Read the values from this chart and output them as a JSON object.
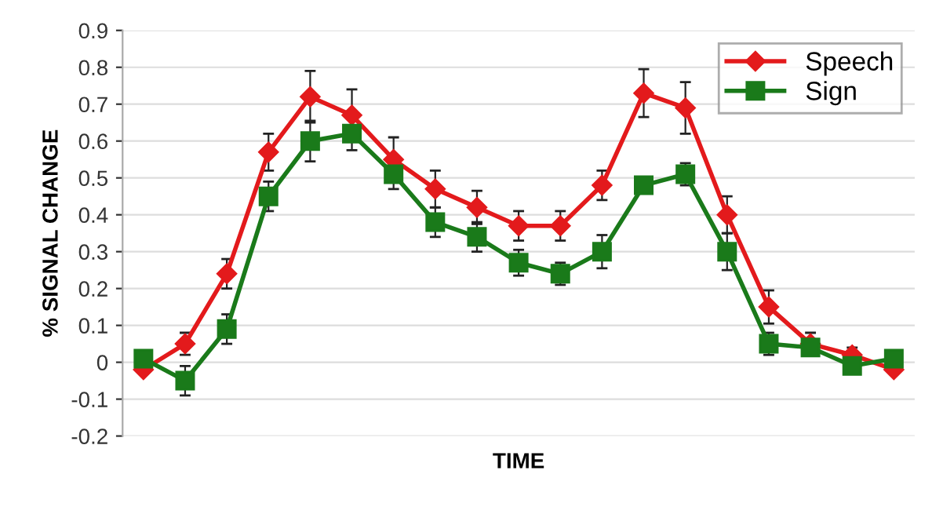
{
  "chart_data": {
    "type": "line",
    "xlabel": "TIME",
    "ylabel": "% SIGNAL CHANGE",
    "categories": [
      null,
      null,
      null,
      null,
      null,
      null,
      null,
      null,
      null,
      null,
      null,
      null,
      null,
      null,
      null,
      null,
      null,
      null,
      null
    ],
    "series": [
      {
        "name": "Speech",
        "color": "#e31a1c",
        "marker": "diamond",
        "values": [
          -0.02,
          0.05,
          0.24,
          0.57,
          0.72,
          0.67,
          0.55,
          0.47,
          0.42,
          0.37,
          0.37,
          0.48,
          0.73,
          0.69,
          0.4,
          0.15,
          0.05,
          0.02,
          -0.02
        ],
        "errors": [
          null,
          0.03,
          0.04,
          0.05,
          0.07,
          0.07,
          0.06,
          0.05,
          0.045,
          0.04,
          0.04,
          0.04,
          0.065,
          0.07,
          0.05,
          0.045,
          0.03,
          0.02,
          null
        ]
      },
      {
        "name": "Sign",
        "color": "#1a7a1a",
        "marker": "square",
        "values": [
          0.01,
          -0.05,
          0.09,
          0.45,
          0.6,
          0.62,
          0.51,
          0.38,
          0.34,
          0.27,
          0.24,
          0.3,
          0.48,
          0.51,
          0.3,
          0.05,
          0.04,
          -0.01,
          0.01
        ],
        "errors": [
          null,
          0.04,
          0.04,
          0.04,
          0.055,
          0.045,
          0.04,
          0.04,
          0.04,
          0.035,
          0.03,
          0.045,
          null,
          0.03,
          0.05,
          0.03,
          null,
          null,
          null
        ]
      }
    ],
    "ylim": [
      -0.2,
      0.9
    ],
    "yticks": [
      {
        "value": -0.2,
        "label": "-0.2"
      },
      {
        "value": -0.1,
        "label": "-0.1"
      },
      0,
      0.1,
      0.2,
      0.3,
      0.4,
      0.5,
      0.6,
      0.7,
      0.8,
      0.9
    ],
    "grid": "y",
    "legend": "top right"
  }
}
